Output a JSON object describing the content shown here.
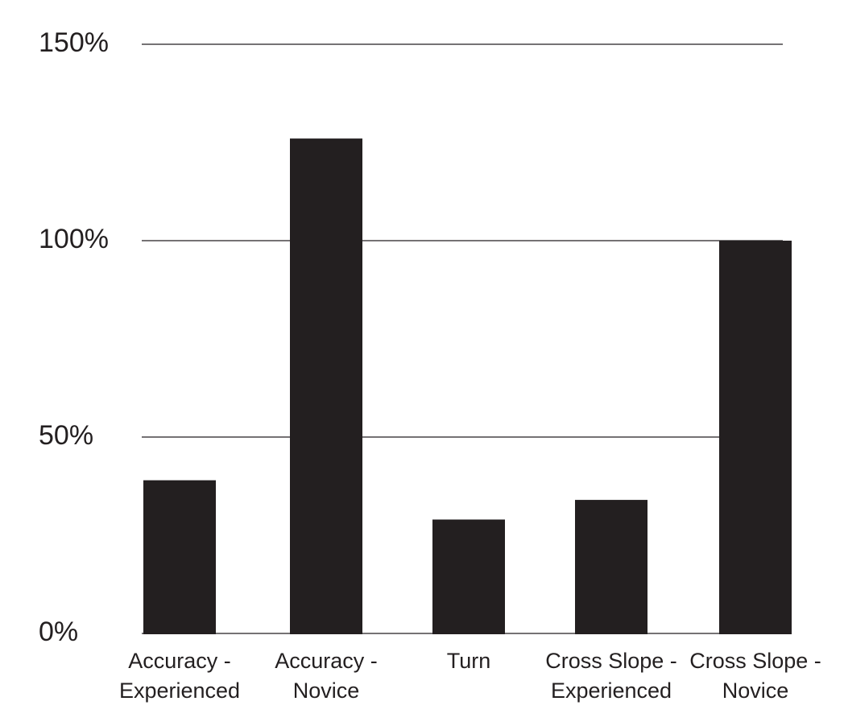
{
  "chart_data": {
    "type": "bar",
    "title": "",
    "xlabel": "",
    "ylabel": "",
    "ylim": [
      0,
      150
    ],
    "y_ticks": [
      {
        "value": 0,
        "label": "0%"
      },
      {
        "value": 50,
        "label": "50%"
      },
      {
        "value": 100,
        "label": "100%"
      },
      {
        "value": 150,
        "label": "150%"
      }
    ],
    "categories": [
      [
        "Accuracy -",
        "Experienced"
      ],
      [
        "Accuracy -",
        "Novice"
      ],
      [
        "Turn"
      ],
      [
        "Cross Slope -",
        "Experienced"
      ],
      [
        "Cross Slope -",
        "Novice"
      ]
    ],
    "values": [
      39,
      126,
      29,
      34,
      100
    ],
    "grid": true,
    "legend": "none",
    "colors": {
      "bar": "#231f20",
      "grid": "#231f20",
      "text": "#231f20",
      "background": "#ffffff"
    }
  }
}
